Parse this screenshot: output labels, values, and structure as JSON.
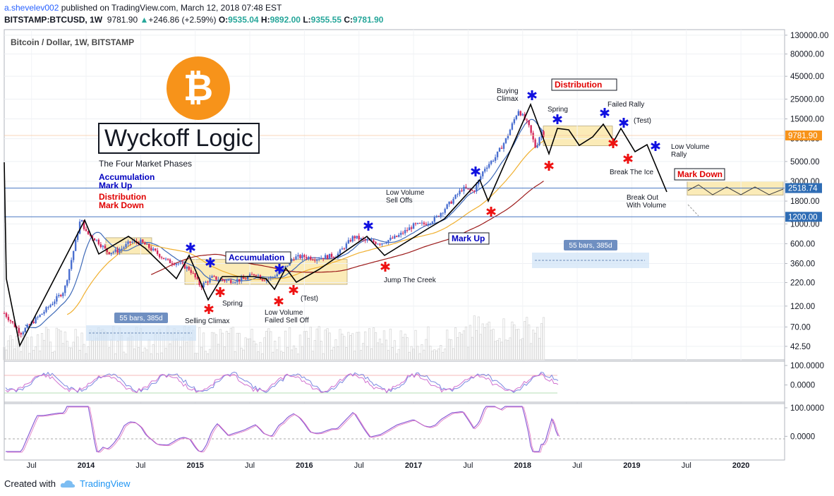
{
  "header": {
    "publisher": "a.shevelev002",
    "published_text": "published on TradingView.com, March 12, 2018 07:48 EST",
    "symbol": "BITSTAMP:BTCUSD, 1W",
    "last": "9781.90",
    "change_arrow": "▲",
    "change": "+246.86 (+2.59%)",
    "o_label": "O:",
    "o": "9535.04",
    "h_label": "H:",
    "h": "9892.00",
    "l_label": "L:",
    "l": "9355.55",
    "c_label": "C:",
    "c": "9781.90"
  },
  "footer": {
    "created_with": "Created with",
    "brand": "TradingView"
  },
  "logo": {
    "symbol": "₿"
  },
  "title_box": "Wyckoff Logic",
  "phases": {
    "heading": "The Four Market Phases",
    "items": [
      {
        "text": "Accumulation",
        "color": "#0000c0"
      },
      {
        "text": "Mark Up",
        "color": "#0000c0"
      },
      {
        "text": "Distribution",
        "color": "#e00000"
      },
      {
        "text": "Mark Down",
        "color": "#e00000"
      }
    ]
  },
  "colors": {
    "blue_star": "#1010e0",
    "red_star": "#ee1111",
    "candle_up": "#4a6fd0",
    "candle_down": "#d4285a",
    "ma_fast": "#3f6ab8",
    "ma_mid": "#f0b030",
    "ma_slow": "#9c1a1a",
    "highlight": "#fbe9b0"
  },
  "chart_data": {
    "type": "candlestick",
    "title": "Bitcoin / Dollar, 1W, BITSTAMP",
    "y_scale": "log",
    "price_axis": {
      "ticks": [
        "130000.00",
        "80000.00",
        "45000.00",
        "25000.00",
        "15000.00",
        "9000.00",
        "5000.00",
        "3000.00",
        "1800.00",
        "1000.00",
        "600.00",
        "360.00",
        "220.00",
        "120.00",
        "70.00",
        "42.50"
      ]
    },
    "price_tags": [
      {
        "label": "9781.90",
        "price": 9781.9,
        "color": "#f7931a"
      },
      {
        "label": "2518.74",
        "price": 2518.74,
        "color": "#2f6db5"
      },
      {
        "label": "1200.00",
        "price": 1200,
        "color": "#2f6db5"
      }
    ],
    "x_axis": {
      "ticks": [
        "Jul",
        "2014",
        "Jul",
        "2015",
        "Jul",
        "2016",
        "Jul",
        "2017",
        "Jul",
        "2018",
        "Jul",
        "2019",
        "Jul",
        "2020"
      ]
    },
    "annotations": {
      "labels": [
        "Selling Climax",
        "Spring",
        "Low Volume Failed Sell Off",
        "(Test)",
        "Low Volume Sell Offs",
        "Jump The Creek",
        "Buying Climax",
        "Spring",
        "Failed Rally",
        "(Test)",
        "Low Volume Rally",
        "Break The Ice",
        "Break Out With Volume"
      ],
      "boxes": [
        "Accumulation",
        "Mark Up",
        "Distribution",
        "Mark Down"
      ],
      "range_labels": [
        "55 bars, 385d",
        "55 bars, 385d"
      ]
    },
    "stoch_rsi": {
      "axis": [
        "100.0000",
        "0.0000"
      ]
    },
    "rsi": {
      "axis": [
        "100.0000",
        "0.0000"
      ]
    }
  }
}
